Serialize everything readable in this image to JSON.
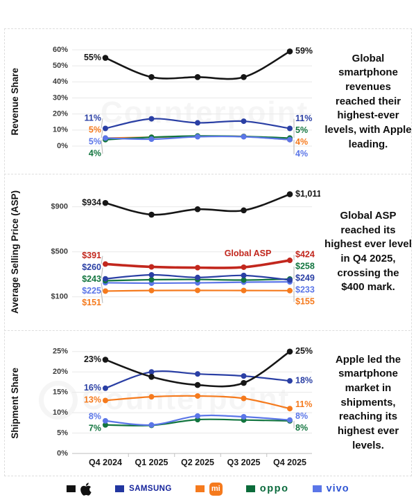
{
  "watermark": "Counterpoint",
  "legend": {
    "items": [
      {
        "name": "Apple",
        "swatch": "#111111",
        "logo": "apple-logo"
      },
      {
        "name": "Samsung",
        "label": "SAMSUNG",
        "swatch": "#2236a0",
        "text_color": "#16249c"
      },
      {
        "name": "Xiaomi",
        "badge_label": "mi",
        "swatch": "#f57a1d",
        "text_color": "#f57a1d"
      },
      {
        "name": "OPPO",
        "label": "oppo",
        "swatch": "#0b6b3a",
        "text_color": "#0a6a3c"
      },
      {
        "name": "vivo",
        "label": "vivo",
        "swatch": "#5b76e8",
        "text_color": "#2f55d4"
      }
    ]
  },
  "chart_data": [
    {
      "type": "line",
      "title": "Revenue Share",
      "ylabel": "Revenue Share",
      "categories": [
        "Q4 2024",
        "Q1 2025",
        "Q2 2025",
        "Q3 2025",
        "Q4 2025"
      ],
      "ylim": [
        0,
        63
      ],
      "yticks": [
        0,
        10,
        20,
        30,
        40,
        50,
        60
      ],
      "tick_suffix": "%",
      "show_x_labels": false,
      "grid": true,
      "legend_position": "bottom",
      "annotation": "Global smartphone revenues reached their highest-ever levels, with Apple leading.",
      "series": [
        {
          "name": "Xiaomi",
          "color": "#f57a1d",
          "values": [
            5,
            5.5,
            6,
            6,
            4
          ],
          "label_left": "5%",
          "label_right": "4%"
        },
        {
          "name": "OPPO",
          "color": "#12753f",
          "values": [
            4,
            5.5,
            6.3,
            6,
            5
          ],
          "label_left": "4%",
          "label_right": "5%"
        },
        {
          "name": "vivo",
          "color": "#5b76e8",
          "values": [
            5,
            4.3,
            5.8,
            5.8,
            4
          ],
          "label_left": "5%",
          "label_right": "4%"
        },
        {
          "name": "Samsung",
          "color": "#2a3fa4",
          "values": [
            11,
            17,
            14.5,
            15.5,
            11
          ],
          "label_left": "11%",
          "label_right": "11%"
        },
        {
          "name": "Apple",
          "color": "#161616",
          "values": [
            55,
            43,
            43,
            43,
            59
          ],
          "label_left": "55%",
          "label_right": "59%"
        }
      ]
    },
    {
      "type": "line",
      "title": "Average Selling Price (ASP)",
      "ylabel": "Average Selling Price (ASP)",
      "categories": [
        "Q4 2024",
        "Q1 2025",
        "Q2 2025",
        "Q3 2025",
        "Q4 2025"
      ],
      "ylim": [
        0,
        1150
      ],
      "yticks": [
        100,
        500,
        900
      ],
      "tick_prefix": "$",
      "show_x_labels": false,
      "grid": true,
      "annotation": "Global ASP reached its highest ever level in Q4 2025, crossing the $400 mark.",
      "series": [
        {
          "name": "Xiaomi",
          "color": "#f57a1d",
          "values": [
            151,
            156,
            157,
            156,
            155
          ],
          "label_left": "$151",
          "label_right": "$155"
        },
        {
          "name": "vivo",
          "color": "#5b76e8",
          "values": [
            225,
            221,
            224,
            230,
            233
          ],
          "label_left": "$225",
          "label_right": "$233"
        },
        {
          "name": "OPPO",
          "color": "#12753f",
          "values": [
            243,
            252,
            254,
            249,
            258
          ],
          "label_left": "$243",
          "label_right": "$258"
        },
        {
          "name": "Samsung",
          "color": "#2a3fa4",
          "values": [
            260,
            295,
            272,
            290,
            249
          ],
          "label_left": "$260",
          "label_right": "$249"
        },
        {
          "name": "Global ASP",
          "color": "#c2271d",
          "values": [
            391,
            366,
            359,
            363,
            424
          ],
          "label_left": "$391",
          "label_right": "$424",
          "inline_label": "Global ASP"
        },
        {
          "name": "Apple",
          "color": "#161616",
          "values": [
            934,
            830,
            878,
            868,
            1011
          ],
          "label_left": "$934",
          "label_right": "$1,011"
        }
      ]
    },
    {
      "type": "line",
      "title": "Shipment Share",
      "ylabel": "Shipment Share",
      "categories": [
        "Q4 2024",
        "Q1 2025",
        "Q2 2025",
        "Q3 2025",
        "Q4 2025"
      ],
      "ylim": [
        0,
        27
      ],
      "yticks": [
        0,
        5,
        10,
        15,
        20,
        25
      ],
      "tick_suffix": "%",
      "show_x_labels": true,
      "grid": true,
      "annotation": "Apple led the smartphone market in shipments, reaching its highest ever levels.",
      "series": [
        {
          "name": "Xiaomi",
          "color": "#f57a1d",
          "values": [
            13,
            13.9,
            14.1,
            13.5,
            11
          ],
          "label_left": "13%",
          "label_right": "11%"
        },
        {
          "name": "OPPO",
          "color": "#12753f",
          "values": [
            7,
            6.9,
            8.3,
            8.2,
            8
          ],
          "label_left": "7%",
          "label_right": "8%"
        },
        {
          "name": "vivo",
          "color": "#5b76e8",
          "values": [
            8,
            7,
            9.2,
            9,
            8.2
          ],
          "label_left": "8%",
          "label_right": "8%"
        },
        {
          "name": "Samsung",
          "color": "#2a3fa4",
          "values": [
            16,
            20,
            19.5,
            19,
            17.8
          ],
          "label_left": "16%",
          "label_right": "18%"
        },
        {
          "name": "Apple",
          "color": "#161616",
          "values": [
            23,
            18.8,
            16.8,
            17.3,
            25
          ],
          "label_left": "23%",
          "label_right": "25%"
        }
      ]
    }
  ]
}
